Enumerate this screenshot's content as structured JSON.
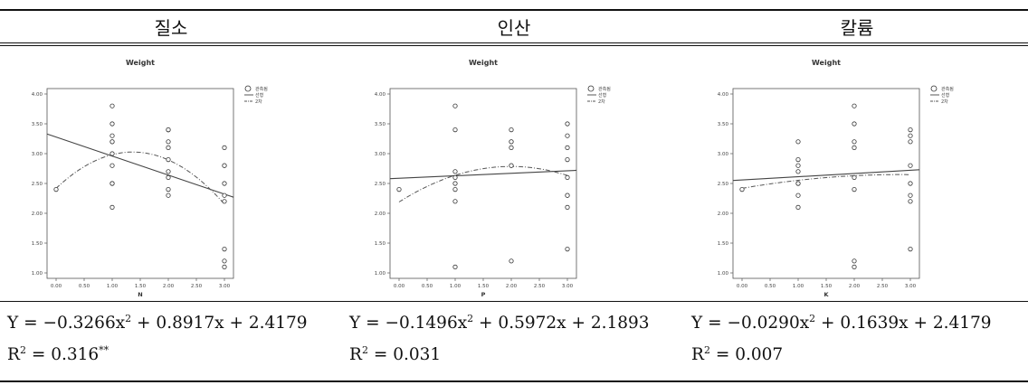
{
  "headers": [
    "질소",
    "인산",
    "칼륨"
  ],
  "chart_data": [
    {
      "type": "scatter",
      "title": "Weight",
      "xlabel": "N",
      "ylabel": "",
      "xlim": [
        0,
        3
      ],
      "ylim": [
        1,
        4
      ],
      "xticks": [
        "0.00",
        "0.50",
        "1.00",
        "1.50",
        "2.00",
        "2.50",
        "3.00"
      ],
      "yticks": [
        "1.00",
        "1.50",
        "2.00",
        "2.50",
        "3.00",
        "3.50",
        "4.00"
      ],
      "legend": [
        "관측됨",
        "선형",
        "2차"
      ],
      "points": [
        [
          0,
          2.4
        ],
        [
          1,
          3.8
        ],
        [
          1,
          3.5
        ],
        [
          1,
          3.3
        ],
        [
          1,
          3.2
        ],
        [
          1,
          3.2
        ],
        [
          1,
          3.0
        ],
        [
          1,
          2.8
        ],
        [
          1,
          2.5
        ],
        [
          1,
          2.5
        ],
        [
          1,
          2.1
        ],
        [
          2,
          3.4
        ],
        [
          2,
          3.4
        ],
        [
          2,
          3.2
        ],
        [
          2,
          3.1
        ],
        [
          2,
          2.9
        ],
        [
          2,
          2.7
        ],
        [
          2,
          2.6
        ],
        [
          2,
          2.4
        ],
        [
          2,
          2.3
        ],
        [
          3,
          3.1
        ],
        [
          3,
          2.8
        ],
        [
          3,
          2.8
        ],
        [
          3,
          2.5
        ],
        [
          3,
          2.3
        ],
        [
          3,
          2.2
        ],
        [
          3,
          1.4
        ],
        [
          3,
          1.2
        ],
        [
          3,
          1.1
        ]
      ],
      "linear": [
        3.33,
        2.27
      ],
      "quadratic": {
        "a": -0.3266,
        "b": 0.8917,
        "c": 2.4179
      }
    },
    {
      "type": "scatter",
      "title": "Weight",
      "xlabel": "P",
      "ylabel": "",
      "xlim": [
        0,
        3
      ],
      "ylim": [
        1,
        4
      ],
      "xticks": [
        "0.00",
        "0.50",
        "1.00",
        "1.50",
        "2.00",
        "2.50",
        "3.00"
      ],
      "yticks": [
        "1.00",
        "1.50",
        "2.00",
        "2.50",
        "3.00",
        "3.50",
        "4.00"
      ],
      "legend": [
        "관측됨",
        "선형",
        "2차"
      ],
      "points": [
        [
          0,
          2.4
        ],
        [
          1,
          3.8
        ],
        [
          1,
          3.4
        ],
        [
          1,
          2.7
        ],
        [
          1,
          2.6
        ],
        [
          1,
          2.5
        ],
        [
          1,
          2.4
        ],
        [
          1,
          2.2
        ],
        [
          1,
          1.1
        ],
        [
          2,
          3.4
        ],
        [
          2,
          3.2
        ],
        [
          2,
          3.2
        ],
        [
          2,
          3.1
        ],
        [
          2,
          2.8
        ],
        [
          2,
          2.8
        ],
        [
          2,
          1.2
        ],
        [
          3,
          3.5
        ],
        [
          3,
          3.3
        ],
        [
          3,
          3.1
        ],
        [
          3,
          2.9
        ],
        [
          3,
          2.6
        ],
        [
          3,
          2.3
        ],
        [
          3,
          2.3
        ],
        [
          3,
          2.1
        ],
        [
          3,
          1.4
        ]
      ],
      "linear": [
        2.58,
        2.72
      ],
      "quadratic": {
        "a": -0.1496,
        "b": 0.5972,
        "c": 2.1893
      }
    },
    {
      "type": "scatter",
      "title": "Weight",
      "xlabel": "K",
      "ylabel": "",
      "xlim": [
        0,
        3
      ],
      "ylim": [
        1,
        4
      ],
      "xticks": [
        "0.00",
        "0.50",
        "1.00",
        "1.50",
        "2.00",
        "2.50",
        "3.00"
      ],
      "yticks": [
        "1.00",
        "1.50",
        "2.00",
        "2.50",
        "3.00",
        "3.50",
        "4.00"
      ],
      "legend": [
        "관측됨",
        "선형",
        "2차"
      ],
      "points": [
        [
          0,
          2.4
        ],
        [
          1,
          3.2
        ],
        [
          1,
          2.9
        ],
        [
          1,
          2.8
        ],
        [
          1,
          2.7
        ],
        [
          1,
          2.5
        ],
        [
          1,
          2.5
        ],
        [
          1,
          2.3
        ],
        [
          1,
          2.1
        ],
        [
          2,
          3.8
        ],
        [
          2,
          3.5
        ],
        [
          2,
          3.2
        ],
        [
          2,
          3.1
        ],
        [
          2,
          2.6
        ],
        [
          2,
          2.4
        ],
        [
          2,
          1.2
        ],
        [
          2,
          1.1
        ],
        [
          3,
          3.4
        ],
        [
          3,
          3.3
        ],
        [
          3,
          3.2
        ],
        [
          3,
          2.8
        ],
        [
          3,
          2.5
        ],
        [
          3,
          2.3
        ],
        [
          3,
          2.2
        ],
        [
          3,
          1.4
        ]
      ],
      "linear": [
        2.55,
        2.73
      ],
      "quadratic": {
        "a": -0.029,
        "b": 0.1639,
        "c": 2.4179
      }
    }
  ],
  "equations": [
    {
      "pre": "Y = −0.3266x",
      "mid": " + 0.8917x + 2.4179",
      "r2": "R",
      "r2val": " = 0.316",
      "sig": "**"
    },
    {
      "pre": "Y = −0.1496x",
      "mid": " + 0.5972x + 2.1893",
      "r2": "R",
      "r2val": " = 0.031",
      "sig": ""
    },
    {
      "pre": "Y = −0.0290x",
      "mid": " + 0.1639x + 2.4179",
      "r2": "R",
      "r2val": " = 0.007",
      "sig": ""
    }
  ],
  "sq": "2"
}
